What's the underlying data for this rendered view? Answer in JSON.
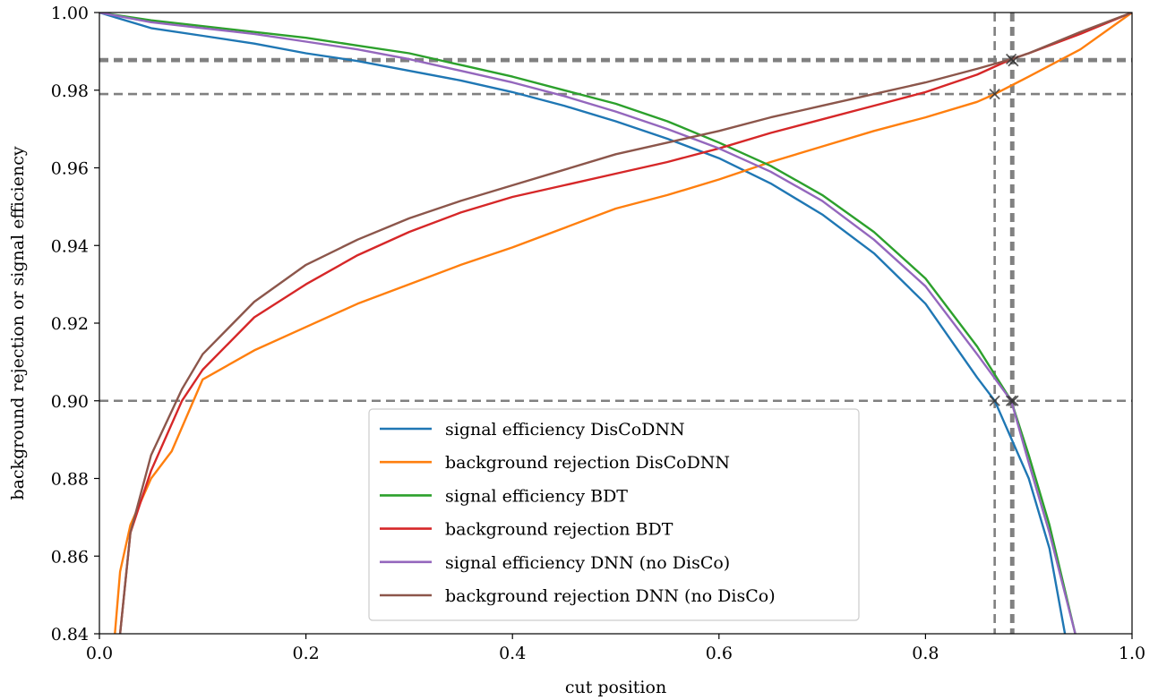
{
  "chart_data": {
    "type": "line",
    "title": "",
    "xlabel": "cut position",
    "ylabel": "background rejection or signal efficiency",
    "xlim": [
      0.0,
      1.0
    ],
    "ylim": [
      0.84,
      1.0
    ],
    "xticks": [
      "0.0",
      "0.2",
      "0.4",
      "0.6",
      "0.8",
      "1.0"
    ],
    "yticks": [
      "0.84",
      "0.86",
      "0.88",
      "0.90",
      "0.92",
      "0.94",
      "0.96",
      "0.98",
      "1.00"
    ],
    "grid": false,
    "legend_position": "bottom-center",
    "series": [
      {
        "name": "signal efficiency DisCoDNN",
        "color": "#1f77b4",
        "points": [
          [
            0.0,
            1.0
          ],
          [
            0.05,
            0.996
          ],
          [
            0.1,
            0.994
          ],
          [
            0.15,
            0.992
          ],
          [
            0.2,
            0.9895
          ],
          [
            0.25,
            0.9875
          ],
          [
            0.3,
            0.985
          ],
          [
            0.35,
            0.9825
          ],
          [
            0.4,
            0.9795
          ],
          [
            0.45,
            0.976
          ],
          [
            0.5,
            0.972
          ],
          [
            0.55,
            0.9675
          ],
          [
            0.6,
            0.9625
          ],
          [
            0.65,
            0.956
          ],
          [
            0.7,
            0.948
          ],
          [
            0.75,
            0.938
          ],
          [
            0.8,
            0.925
          ],
          [
            0.85,
            0.906
          ],
          [
            0.867,
            0.9
          ],
          [
            0.9,
            0.88
          ],
          [
            0.92,
            0.862
          ],
          [
            0.935,
            0.84
          ]
        ]
      },
      {
        "name": "background rejection DisCoDNN",
        "color": "#ff7f0e",
        "points": [
          [
            0.015,
            0.84
          ],
          [
            0.02,
            0.856
          ],
          [
            0.03,
            0.868
          ],
          [
            0.05,
            0.88
          ],
          [
            0.07,
            0.887
          ],
          [
            0.1,
            0.9055
          ],
          [
            0.15,
            0.913
          ],
          [
            0.2,
            0.919
          ],
          [
            0.25,
            0.925
          ],
          [
            0.3,
            0.93
          ],
          [
            0.35,
            0.935
          ],
          [
            0.4,
            0.9395
          ],
          [
            0.45,
            0.9445
          ],
          [
            0.5,
            0.9495
          ],
          [
            0.55,
            0.953
          ],
          [
            0.6,
            0.957
          ],
          [
            0.65,
            0.9615
          ],
          [
            0.7,
            0.9655
          ],
          [
            0.75,
            0.9695
          ],
          [
            0.8,
            0.973
          ],
          [
            0.85,
            0.977
          ],
          [
            0.867,
            0.979
          ],
          [
            0.9,
            0.9835
          ],
          [
            0.95,
            0.9905
          ],
          [
            1.0,
            1.0
          ]
        ]
      },
      {
        "name": "signal efficiency BDT",
        "color": "#2ca02c",
        "points": [
          [
            0.0,
            1.0
          ],
          [
            0.05,
            0.998
          ],
          [
            0.1,
            0.9965
          ],
          [
            0.15,
            0.995
          ],
          [
            0.2,
            0.9935
          ],
          [
            0.25,
            0.9915
          ],
          [
            0.3,
            0.9895
          ],
          [
            0.35,
            0.9865
          ],
          [
            0.4,
            0.9835
          ],
          [
            0.45,
            0.98
          ],
          [
            0.5,
            0.9765
          ],
          [
            0.55,
            0.972
          ],
          [
            0.6,
            0.9665
          ],
          [
            0.65,
            0.9605
          ],
          [
            0.7,
            0.953
          ],
          [
            0.75,
            0.9435
          ],
          [
            0.8,
            0.9315
          ],
          [
            0.85,
            0.914
          ],
          [
            0.883,
            0.9
          ],
          [
            0.9,
            0.886
          ],
          [
            0.92,
            0.868
          ],
          [
            0.945,
            0.84
          ]
        ]
      },
      {
        "name": "background rejection BDT",
        "color": "#d62728",
        "points": [
          [
            0.02,
            0.84
          ],
          [
            0.03,
            0.866
          ],
          [
            0.05,
            0.882
          ],
          [
            0.08,
            0.9
          ],
          [
            0.1,
            0.908
          ],
          [
            0.15,
            0.9215
          ],
          [
            0.2,
            0.93
          ],
          [
            0.25,
            0.9375
          ],
          [
            0.3,
            0.9435
          ],
          [
            0.35,
            0.9485
          ],
          [
            0.4,
            0.9525
          ],
          [
            0.45,
            0.9555
          ],
          [
            0.5,
            0.9585
          ],
          [
            0.55,
            0.9615
          ],
          [
            0.6,
            0.965
          ],
          [
            0.65,
            0.969
          ],
          [
            0.7,
            0.9725
          ],
          [
            0.75,
            0.976
          ],
          [
            0.8,
            0.9795
          ],
          [
            0.85,
            0.984
          ],
          [
            0.883,
            0.988
          ],
          [
            0.9,
            0.9895
          ],
          [
            0.95,
            0.9945
          ],
          [
            1.0,
            1.0
          ]
        ]
      },
      {
        "name": "signal efficiency DNN (no DisCo)",
        "color": "#9467bd",
        "points": [
          [
            0.0,
            1.0
          ],
          [
            0.05,
            0.9975
          ],
          [
            0.1,
            0.996
          ],
          [
            0.15,
            0.9945
          ],
          [
            0.2,
            0.9925
          ],
          [
            0.25,
            0.9905
          ],
          [
            0.3,
            0.988
          ],
          [
            0.35,
            0.985
          ],
          [
            0.4,
            0.982
          ],
          [
            0.45,
            0.9785
          ],
          [
            0.5,
            0.9745
          ],
          [
            0.55,
            0.97
          ],
          [
            0.6,
            0.965
          ],
          [
            0.65,
            0.959
          ],
          [
            0.7,
            0.9515
          ],
          [
            0.75,
            0.9415
          ],
          [
            0.8,
            0.9295
          ],
          [
            0.85,
            0.912
          ],
          [
            0.883,
            0.9
          ],
          [
            0.9,
            0.884
          ],
          [
            0.92,
            0.866
          ],
          [
            0.945,
            0.84
          ]
        ]
      },
      {
        "name": "background rejection DNN (no DisCo)",
        "color": "#8c564b",
        "points": [
          [
            0.02,
            0.84
          ],
          [
            0.03,
            0.866
          ],
          [
            0.05,
            0.886
          ],
          [
            0.08,
            0.903
          ],
          [
            0.1,
            0.912
          ],
          [
            0.15,
            0.9255
          ],
          [
            0.2,
            0.935
          ],
          [
            0.25,
            0.9415
          ],
          [
            0.3,
            0.947
          ],
          [
            0.35,
            0.9515
          ],
          [
            0.4,
            0.9555
          ],
          [
            0.45,
            0.9595
          ],
          [
            0.5,
            0.9635
          ],
          [
            0.55,
            0.9665
          ],
          [
            0.6,
            0.9695
          ],
          [
            0.65,
            0.973
          ],
          [
            0.7,
            0.976
          ],
          [
            0.75,
            0.979
          ],
          [
            0.8,
            0.982
          ],
          [
            0.85,
            0.9855
          ],
          [
            0.883,
            0.988
          ],
          [
            0.9,
            0.9895
          ],
          [
            0.95,
            0.995
          ],
          [
            1.0,
            1.0
          ]
        ]
      }
    ],
    "reference_lines": {
      "color": "#808080",
      "horizontal": [
        0.9,
        0.979,
        0.9875,
        0.988
      ],
      "vertical": [
        0.867,
        0.883,
        0.885
      ]
    },
    "markers": [
      {
        "x": 0.867,
        "y": 0.9
      },
      {
        "x": 0.883,
        "y": 0.9
      },
      {
        "x": 0.885,
        "y": 0.9
      },
      {
        "x": 0.867,
        "y": 0.979
      },
      {
        "x": 0.883,
        "y": 0.988
      },
      {
        "x": 0.885,
        "y": 0.9875
      }
    ]
  }
}
